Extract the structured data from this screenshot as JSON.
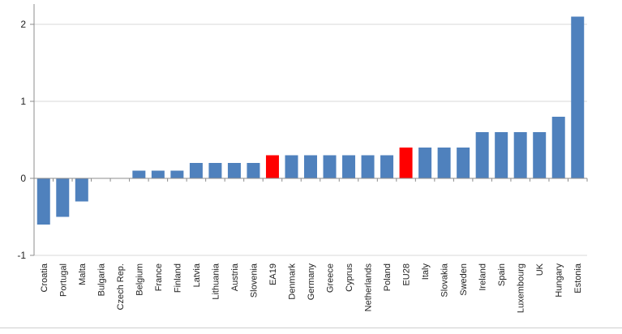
{
  "chart_data": {
    "type": "bar",
    "title": "",
    "xlabel": "",
    "ylabel": "",
    "ylim": [
      -1,
      2.2
    ],
    "yticks": [
      -1,
      0,
      1,
      2
    ],
    "grid": true,
    "legend": "none",
    "colors": {
      "default": "#4f81bd",
      "highlight": "#ff0000",
      "grid": "#d9d9d9",
      "axis": "#8c8c8c"
    },
    "highlight_categories": [
      "EA19",
      "EU28"
    ],
    "categories": [
      "Croatia",
      "Portugal",
      "Malta",
      "Bulgaria",
      "Czech Rep.",
      "Belgium",
      "France",
      "Finland",
      "Latvia",
      "Lithuania",
      "Austria",
      "Slovenia",
      "EA19",
      "Denmark",
      "Germany",
      "Greece",
      "Cyprus",
      "Netherlands",
      "Poland",
      "EU28",
      "Italy",
      "Slovakia",
      "Sweden",
      "Ireland",
      "Spain",
      "Luxembourg",
      "UK",
      "Hungary",
      "Estonia"
    ],
    "values": [
      -0.6,
      -0.5,
      -0.3,
      0,
      0,
      0.1,
      0.1,
      0.1,
      0.2,
      0.2,
      0.2,
      0.2,
      0.3,
      0.3,
      0.3,
      0.3,
      0.3,
      0.3,
      0.3,
      0.4,
      0.4,
      0.4,
      0.4,
      0.6,
      0.6,
      0.6,
      0.6,
      0.8,
      2.1
    ]
  }
}
